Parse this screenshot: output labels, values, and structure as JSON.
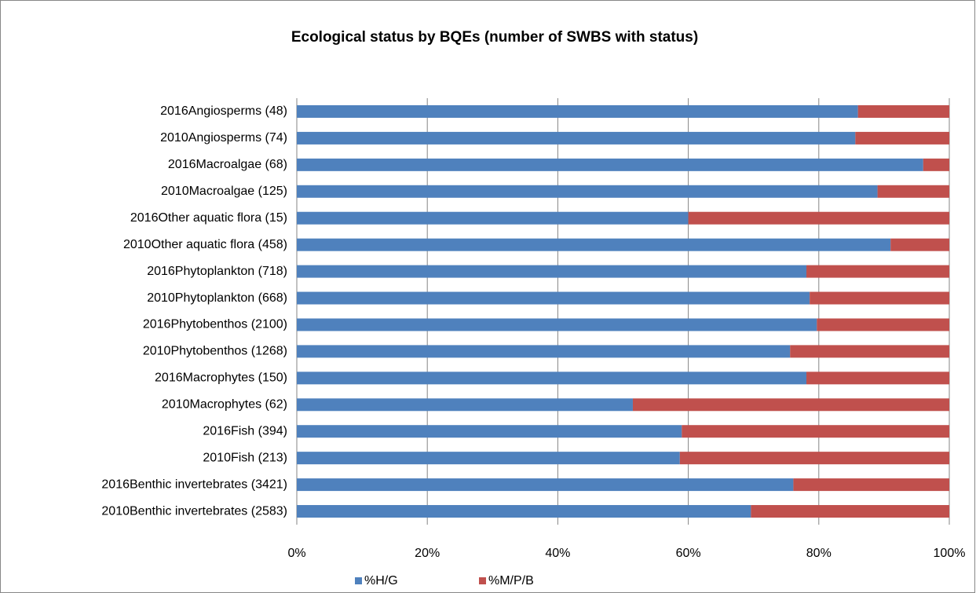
{
  "chart_data": {
    "type": "stacked-bar-horizontal",
    "title": "Ecological status by BQEs (number of SWBS with status)",
    "categories": [
      "2016Angiosperms (48)",
      "2010Angiosperms (74)",
      "2016Macroalgae (68)",
      "2010Macroalgae (125)",
      "2016Other aquatic flora (15)",
      "2010Other aquatic flora (458)",
      "2016Phytoplankton (718)",
      "2010Phytoplankton (668)",
      "2016Phytobenthos (2100)",
      "2010Phytobenthos (1268)",
      "2016Macrophytes (150)",
      "2010Macrophytes (62)",
      "2016Fish (394)",
      "2010Fish (213)",
      "2016Benthic invertebrates (3421)",
      "2010Benthic invertebrates (2583)"
    ],
    "series": [
      {
        "name": "%H/G",
        "color": "#4f81bd",
        "values": [
          86,
          85.6,
          96,
          89,
          60,
          91,
          78.1,
          78.6,
          79.7,
          75.6,
          78.1,
          51.5,
          59,
          58.7,
          76.1,
          69.6
        ]
      },
      {
        "name": "%M/P/B",
        "color": "#c0504d",
        "values": [
          14,
          14.4,
          4,
          11,
          40,
          9,
          21.9,
          21.4,
          20.3,
          24.4,
          21.9,
          48.5,
          41,
          41.3,
          23.9,
          30.4
        ]
      }
    ],
    "xlim": [
      0,
      100
    ],
    "xticks": [
      {
        "value": 0,
        "label": "0%"
      },
      {
        "value": 20,
        "label": "20%"
      },
      {
        "value": 40,
        "label": "40%"
      },
      {
        "value": 60,
        "label": "60%"
      },
      {
        "value": 80,
        "label": "80%"
      },
      {
        "value": 100,
        "label": "100%"
      }
    ],
    "grid": true,
    "legend": "bottom"
  }
}
